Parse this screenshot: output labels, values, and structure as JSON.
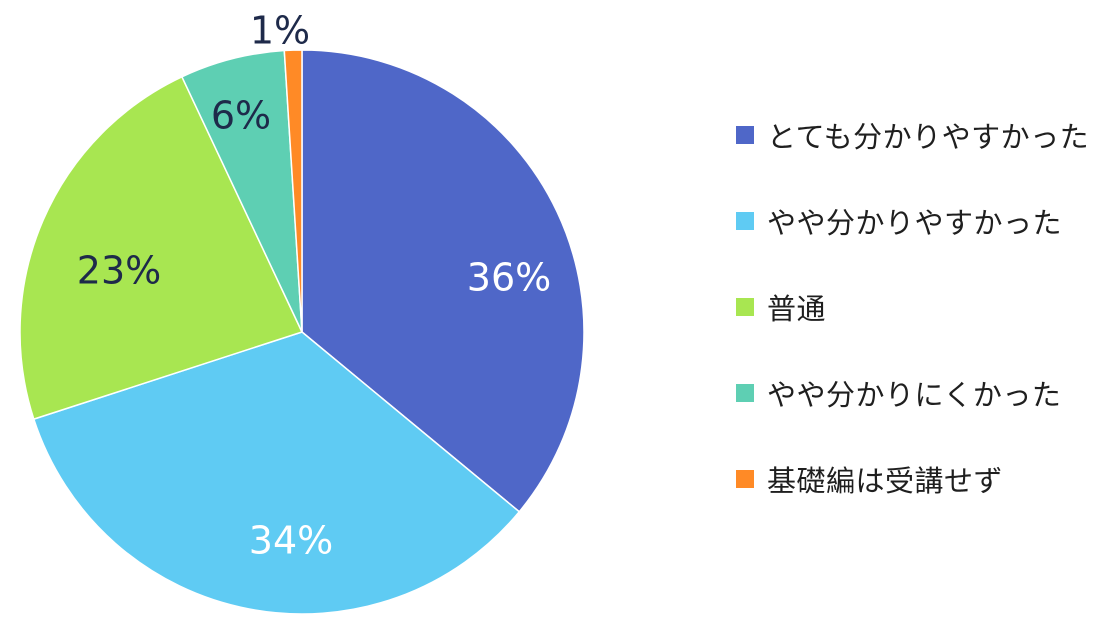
{
  "chart_data": {
    "type": "pie",
    "start_angle_deg": 0,
    "direction": "clockwise",
    "legend_position": "right",
    "slices": [
      {
        "label": "とても分かりやすかった",
        "value": 36,
        "data_label": "36%",
        "color": "#4F67C8",
        "label_color": "#FFFFFF"
      },
      {
        "label": "やや分かりやすかった",
        "value": 34,
        "data_label": "34%",
        "color": "#5FCBF3",
        "label_color": "#FFFFFF"
      },
      {
        "label": "普通",
        "value": 23,
        "data_label": "23%",
        "color": "#A8E651",
        "label_color": "#1E2A4A"
      },
      {
        "label": "やや分かりにくかった",
        "value": 6,
        "data_label": "6%",
        "color": "#5ECFB3",
        "label_color": "#1E2A4A"
      },
      {
        "label": "基礎編は受講せず",
        "value": 1,
        "data_label": "1%",
        "color": "#FF8A26",
        "label_color": "#1E2A4A"
      }
    ]
  }
}
